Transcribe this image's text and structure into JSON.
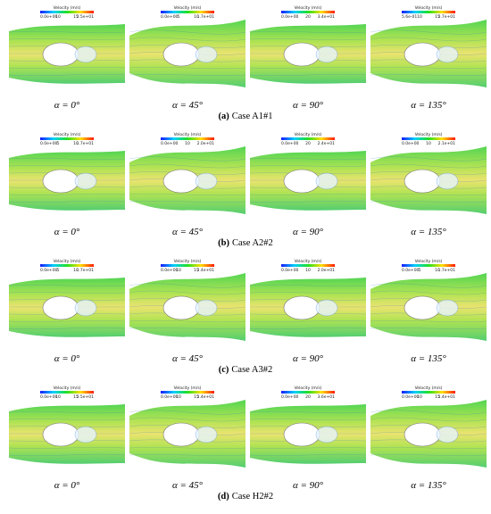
{
  "rows": [
    {
      "caption": {
        "label": "(a)",
        "text": "Case A1#1"
      },
      "panels": [
        {
          "angle": "α = 0°",
          "colorbar": {
            "title": "Velocity (m/s)",
            "ticks": [
              "0.0e+00",
              "10",
              "15",
              "2.5e+01"
            ]
          }
        },
        {
          "angle": "α = 45°",
          "colorbar": {
            "title": "Velocity (m/s)",
            "ticks": [
              "0.0e+00",
              "5",
              "10",
              "1.7e+01"
            ]
          }
        },
        {
          "angle": "α = 90°",
          "colorbar": {
            "title": "Velocity (m/s)",
            "ticks": [
              "0.0e+00",
              "20",
              "3.4e+01"
            ]
          }
        },
        {
          "angle": "α = 135°",
          "colorbar": {
            "title": "Velocity (m/s)",
            "ticks": [
              "5.6e-01",
              "10",
              "15",
              "2.7e+01"
            ]
          }
        }
      ]
    },
    {
      "caption": {
        "label": "(b)",
        "text": "Case A2#2"
      },
      "panels": [
        {
          "angle": "α = 0°",
          "colorbar": {
            "title": "Velocity (m/s)",
            "ticks": [
              "0.0e+00",
              "5",
              "10",
              "1.7e+01"
            ]
          }
        },
        {
          "angle": "α = 45°",
          "colorbar": {
            "title": "Velocity (m/s)",
            "ticks": [
              "0.0e+00",
              "10",
              "2.0e+01"
            ]
          }
        },
        {
          "angle": "α = 90°",
          "colorbar": {
            "title": "Velocity (m/s)",
            "ticks": [
              "0.0e+00",
              "20",
              "2.4e+01"
            ]
          }
        },
        {
          "angle": "α = 135°",
          "colorbar": {
            "title": "Velocity (m/s)",
            "ticks": [
              "0.0e+00",
              "10",
              "2.1e+01"
            ]
          }
        }
      ]
    },
    {
      "caption": {
        "label": "(c)",
        "text": "Case A3#2"
      },
      "panels": [
        {
          "angle": "α = 0°",
          "colorbar": {
            "title": "Velocity (m/s)",
            "ticks": [
              "0.0e+00",
              "5",
              "10",
              "1.7e+01"
            ]
          }
        },
        {
          "angle": "α = 45°",
          "colorbar": {
            "title": "Velocity (m/s)",
            "ticks": [
              "0.0e+00",
              "10",
              "15",
              "2.4e+01"
            ]
          }
        },
        {
          "angle": "α = 90°",
          "colorbar": {
            "title": "Velocity (m/s)",
            "ticks": [
              "0.0e+00",
              "10",
              "2.0e+01"
            ]
          }
        },
        {
          "angle": "α = 135°",
          "colorbar": {
            "title": "Velocity (m/s)",
            "ticks": [
              "0.0e+00",
              "5",
              "10",
              "1.7e+01"
            ]
          }
        }
      ]
    },
    {
      "caption": {
        "label": "(d)",
        "text": "Case H2#2"
      },
      "panels": [
        {
          "angle": "α = 0°",
          "colorbar": {
            "title": "Velocity (m/s)",
            "ticks": [
              "0.0e+00",
              "10",
              "15",
              "2.5e+01"
            ]
          }
        },
        {
          "angle": "α = 45°",
          "colorbar": {
            "title": "Velocity (m/s)",
            "ticks": [
              "0.0e+00",
              "10",
              "15",
              "2.4e+01"
            ]
          }
        },
        {
          "angle": "α = 90°",
          "colorbar": {
            "title": "Velocity (m/s)",
            "ticks": [
              "0.0e+00",
              "20",
              "3.6e+01"
            ]
          }
        },
        {
          "angle": "α = 135°",
          "colorbar": {
            "title": "Velocity (m/s)",
            "ticks": [
              "0.0e+00",
              "10",
              "15",
              "2.4e+01"
            ]
          }
        }
      ]
    }
  ]
}
